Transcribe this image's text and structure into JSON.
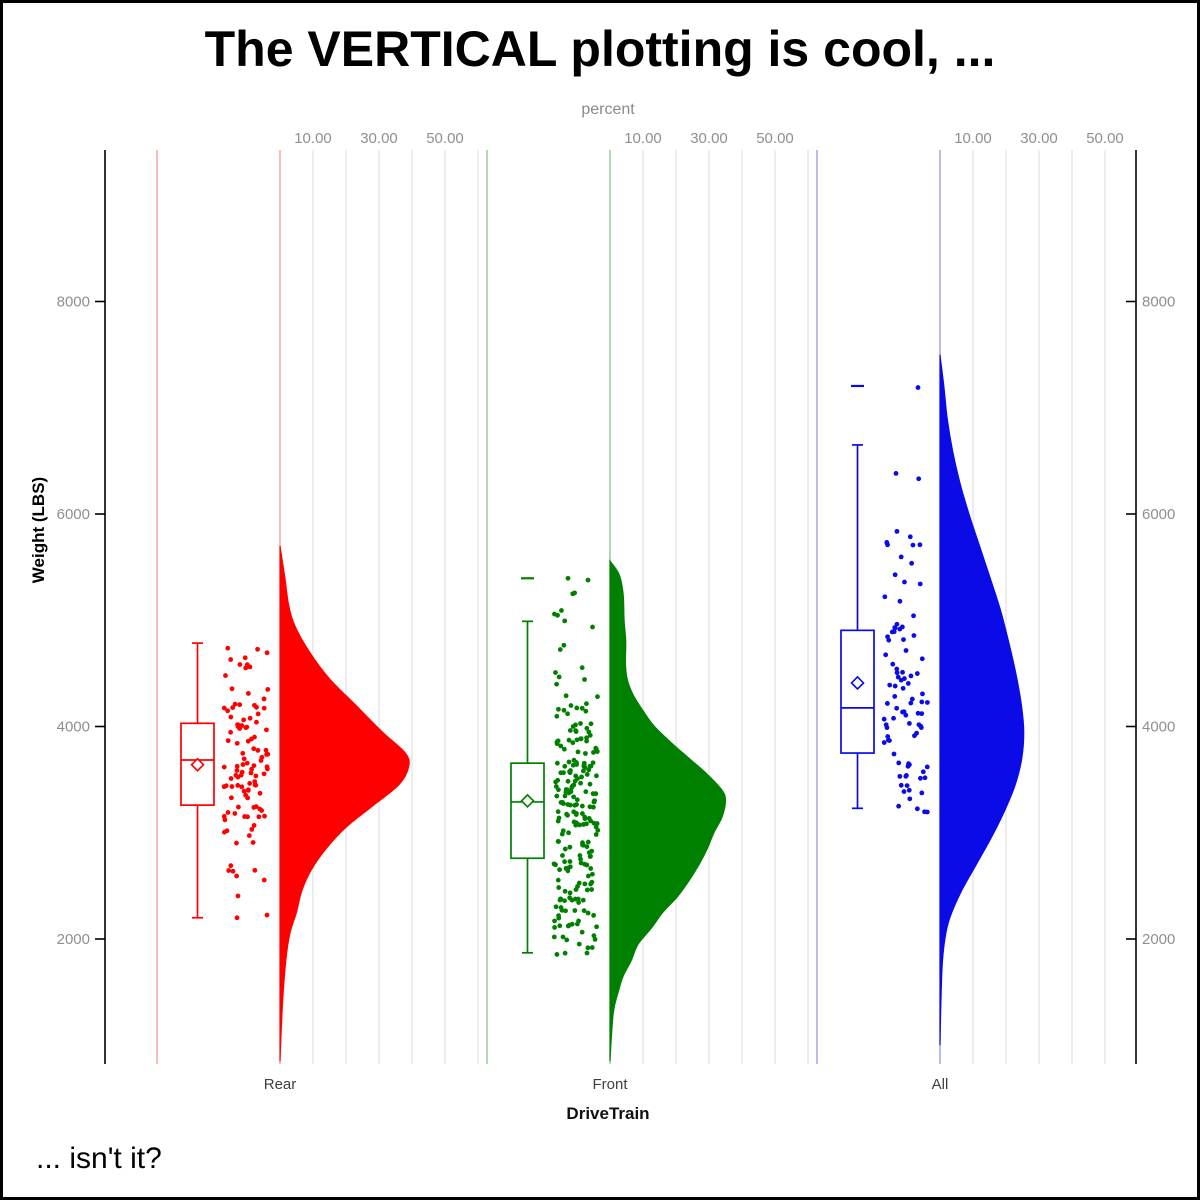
{
  "title": "The VERTICAL plotting is cool, ...",
  "footnote": "... isn't it?",
  "axes": {
    "top": {
      "label": "percent",
      "tick_labels": [
        "10.00",
        "30.00",
        "50.00"
      ],
      "tick_values_pct": [
        10,
        30,
        50
      ],
      "gridlines_pct": [
        10,
        20,
        30,
        40,
        50,
        60
      ]
    },
    "left": {
      "label": "Weight (LBS)",
      "tick_values": [
        2000,
        4000,
        6000,
        8000
      ]
    },
    "right": {
      "tick_values": [
        2000,
        4000,
        6000,
        8000
      ]
    },
    "bottom": {
      "label": "DriveTrain",
      "categories": [
        "Rear",
        "Front",
        "All"
      ]
    }
  },
  "styles": {
    "background": "#FFFFFF",
    "frame_border_color": "#000000",
    "axis_line_color": "#000000",
    "gridline_color": "#EDEDED",
    "tick_label_color": "#8F8F8F",
    "axis_title_gray": "#8A8A8A",
    "category_label_color": "#3F3F3F",
    "title_color": "#000000"
  },
  "chart_data": {
    "type": "raincloud",
    "description": "Vertical raincloud plot: half-violin density (percent axis on top), box plot with mean diamond, and jittered raw points of vehicle Weight (LBS) grouped by DriveTrain.",
    "title": "The VERTICAL plotting is cool, ...",
    "xlabel": "DriveTrain",
    "ylabel": "Weight (LBS)",
    "y_ticks": [
      2000,
      4000,
      6000,
      8000
    ],
    "ylim_approx": [
      830,
      9430
    ],
    "percent_axis_label": "percent",
    "percent_axis_ticks": [
      10,
      30,
      50
    ],
    "categories": [
      "Rear",
      "Front",
      "All"
    ],
    "groups": [
      {
        "name": "Rear",
        "color": "#FF0000",
        "axis_tint": "#F6B6B2",
        "n": 110,
        "seed": 7,
        "box": {
          "whisker_low": 2200,
          "q1": 3260,
          "median": 3685,
          "mean": 3640,
          "q3": 4030,
          "whisker_high": 4785
        },
        "outlier_lines": [],
        "extra_points": [
          [
            2405,
            -42
          ],
          [
            2200,
            -43
          ]
        ],
        "sample_range": [
          2195,
          4790
        ],
        "violin_profile": [
          [
            5700,
            0
          ],
          [
            5400,
            1.5
          ],
          [
            5150,
            2.6
          ],
          [
            4950,
            4.5
          ],
          [
            4700,
            9
          ],
          [
            4450,
            15
          ],
          [
            4200,
            23
          ],
          [
            3950,
            31
          ],
          [
            3750,
            38
          ],
          [
            3620,
            39
          ],
          [
            3450,
            36
          ],
          [
            3250,
            28
          ],
          [
            3050,
            20
          ],
          [
            2850,
            14
          ],
          [
            2650,
            9.5
          ],
          [
            2450,
            6.6
          ],
          [
            2250,
            5
          ],
          [
            2050,
            3
          ],
          [
            1800,
            1.8
          ],
          [
            1400,
            0.8
          ],
          [
            850,
            0
          ]
        ]
      },
      {
        "name": "Front",
        "color": "#008000",
        "axis_tint": "#ABD2AB",
        "n": 226,
        "seed": 13,
        "box": {
          "whisker_low": 1870,
          "q1": 2760,
          "median": 3290,
          "mean": 3300,
          "q3": 3655,
          "whisker_high": 4990
        },
        "outlier_lines": [
          5395
        ],
        "extra_points": [
          [
            5395,
            -42
          ],
          [
            5378,
            -22
          ],
          [
            1868,
            -23
          ],
          [
            2019,
            -47
          ]
        ],
        "sample_range": [
          1850,
          5360
        ],
        "violin_profile": [
          [
            5560,
            0
          ],
          [
            5430,
            2.8
          ],
          [
            5250,
            4
          ],
          [
            5000,
            4.3
          ],
          [
            4800,
            4.8
          ],
          [
            4600,
            4.7
          ],
          [
            4450,
            5.2
          ],
          [
            4300,
            7
          ],
          [
            4150,
            10
          ],
          [
            4000,
            13.5
          ],
          [
            3850,
            18.5
          ],
          [
            3700,
            24
          ],
          [
            3550,
            29.5
          ],
          [
            3400,
            34
          ],
          [
            3300,
            35
          ],
          [
            3150,
            34
          ],
          [
            3000,
            31.5
          ],
          [
            2850,
            29.5
          ],
          [
            2700,
            27
          ],
          [
            2550,
            24
          ],
          [
            2400,
            20.5
          ],
          [
            2250,
            16
          ],
          [
            2100,
            12.5
          ],
          [
            1950,
            8.5
          ],
          [
            1800,
            6.5
          ],
          [
            1650,
            4
          ],
          [
            1500,
            2.5
          ],
          [
            1300,
            1
          ],
          [
            850,
            0
          ]
        ]
      },
      {
        "name": "All",
        "color": "#0B0BE8",
        "axis_tint": "#B5B5EE",
        "n": 92,
        "seed": 5,
        "box": {
          "whisker_low": 3230,
          "q1": 3750,
          "median": 4175,
          "mean": 4410,
          "q3": 4905,
          "whisker_high": 6650
        },
        "outlier_lines": [
          7205
        ],
        "extra_points": [
          [
            7190,
            -22
          ]
        ],
        "sample_range": [
          3180,
          6480
        ],
        "violin_profile": [
          [
            7500,
            0
          ],
          [
            7200,
            1.2
          ],
          [
            6900,
            2.2
          ],
          [
            6600,
            3.8
          ],
          [
            6300,
            6
          ],
          [
            6000,
            8.8
          ],
          [
            5700,
            12
          ],
          [
            5400,
            15.2
          ],
          [
            5100,
            18.3
          ],
          [
            4800,
            20.8
          ],
          [
            4500,
            23
          ],
          [
            4200,
            24.7
          ],
          [
            3950,
            25.4
          ],
          [
            3700,
            24.8
          ],
          [
            3450,
            22.8
          ],
          [
            3200,
            19.5
          ],
          [
            2950,
            15.5
          ],
          [
            2700,
            11
          ],
          [
            2450,
            6.5
          ],
          [
            2200,
            3
          ],
          [
            2000,
            1.5
          ],
          [
            1700,
            0.6
          ],
          [
            1000,
            0
          ]
        ]
      }
    ]
  }
}
